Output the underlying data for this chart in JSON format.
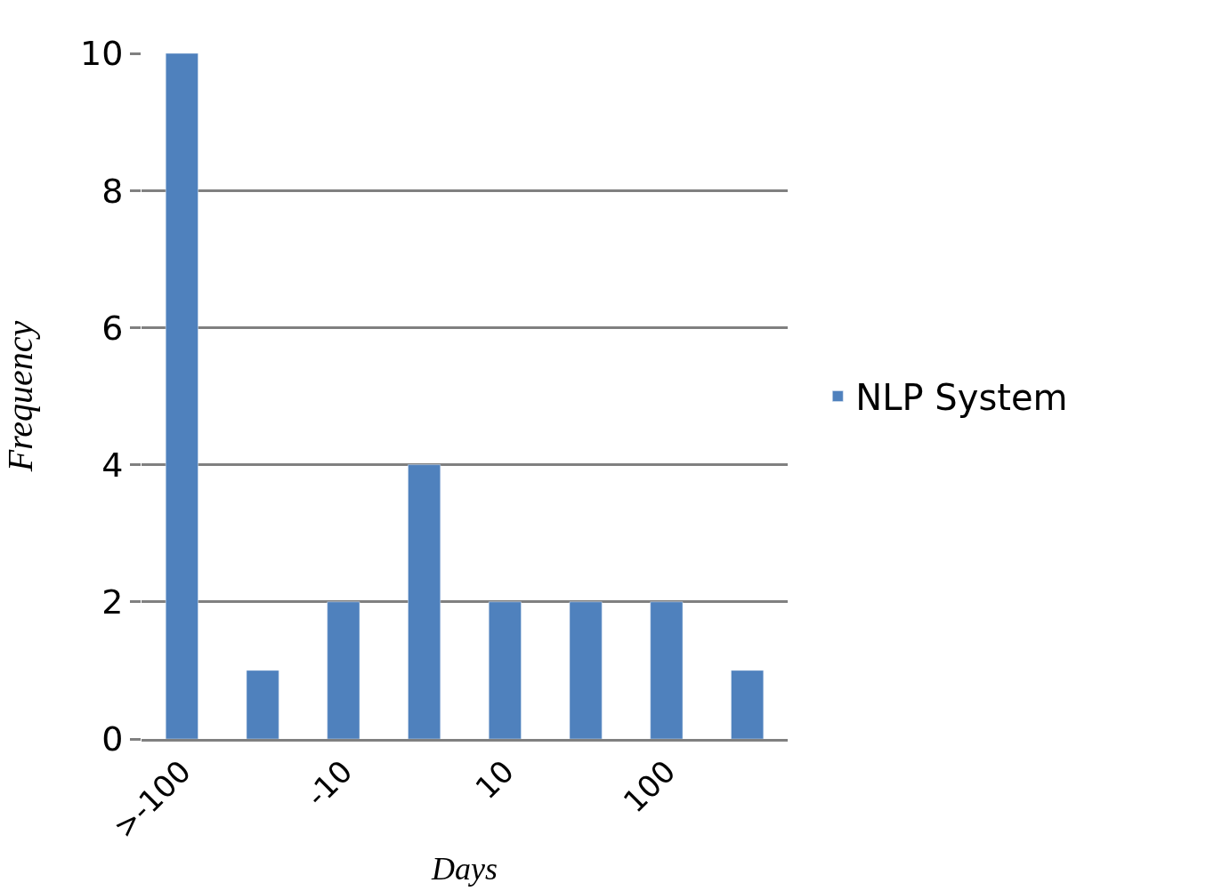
{
  "chart_data": {
    "type": "bar",
    "xlabel": "Days",
    "ylabel": "Frequency",
    "categories": [
      ">-100",
      null,
      "-10",
      null,
      "10",
      null,
      "100",
      null
    ],
    "series": [
      {
        "name": "NLP System",
        "color": "#4f81bd",
        "values": [
          10,
          1,
          2,
          4,
          2,
          2,
          2,
          1
        ]
      }
    ],
    "ylim": [
      0,
      10
    ],
    "yticks": [
      0,
      2,
      4,
      6,
      8,
      10
    ],
    "grid": "y",
    "legend": "right"
  }
}
